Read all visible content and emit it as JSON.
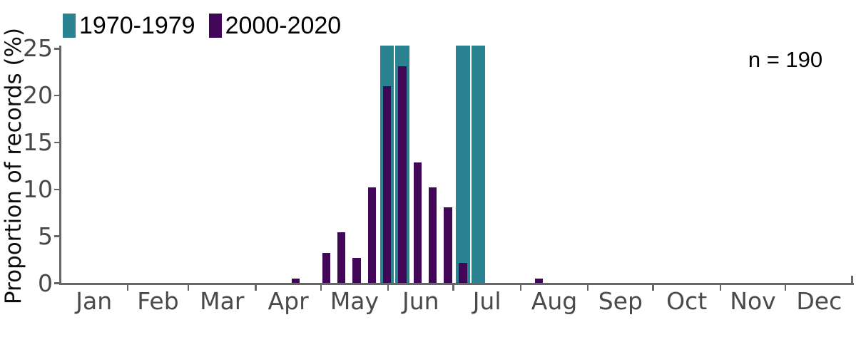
{
  "chart_data": {
    "type": "bar",
    "title": "",
    "ylabel": "Proportion of records (%)",
    "xlabel": "",
    "ylim": [
      0,
      25
    ],
    "yticks": [
      0,
      5,
      10,
      15,
      20,
      25
    ],
    "x_tick_labels": [
      "Jan",
      "Feb",
      "Mar",
      "Apr",
      "May",
      "Jun",
      "Jul",
      "Aug",
      "Sep",
      "Oct",
      "Nov",
      "Dec"
    ],
    "x_binning": "week of year",
    "grid": false,
    "legend_position": "top-left",
    "annotation": "n = 190",
    "series": [
      {
        "name": "1970-1979",
        "color": "#2b8290",
        "weeks": [
          22,
          23,
          27,
          28
        ],
        "values": [
          25,
          25,
          25,
          25
        ],
        "clipped_at_top": true
      },
      {
        "name": "2000-2020",
        "color": "#420659",
        "weeks": [
          16,
          18,
          19,
          20,
          21,
          22,
          23,
          24,
          25,
          26,
          27,
          32
        ],
        "values": [
          0.5,
          3.2,
          5.4,
          2.7,
          10.2,
          21.0,
          23.1,
          12.9,
          10.2,
          8.1,
          2.2,
          0.5
        ],
        "clipped_at_top": false
      }
    ]
  },
  "legend": {
    "items": [
      {
        "label": "1970-1979",
        "color": "#2b8290"
      },
      {
        "label": "2000-2020",
        "color": "#420659"
      }
    ]
  },
  "annotation": {
    "text": "n = 190"
  },
  "y_axis": {
    "title": "Proportion of records (%)"
  },
  "colors": {
    "bar_teal": "#2b8290",
    "bar_purple": "#420659",
    "axis": "#666666",
    "tick_text": "#474747",
    "month_text": "#4a4a4a"
  }
}
